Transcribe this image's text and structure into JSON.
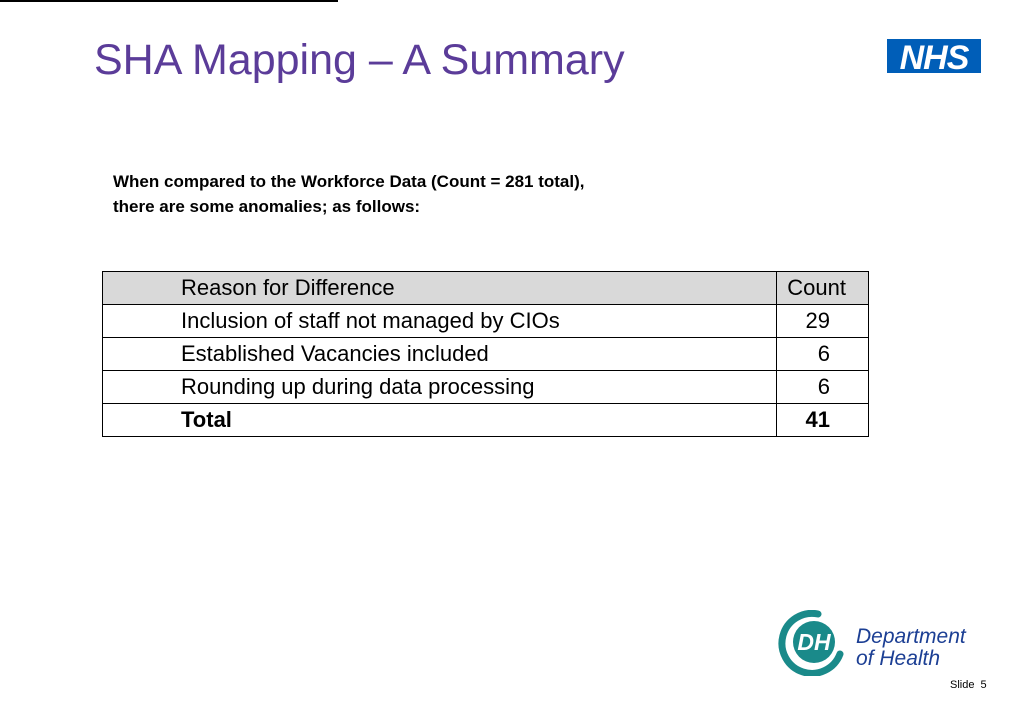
{
  "slide": {
    "title": "SHA Mapping – A Summary",
    "intro_line1": "When compared to the Workforce Data (Count = 281 total),",
    "intro_line2": "there are some anomalies; as follows:",
    "table": {
      "headers": [
        "Reason for Difference",
        "Count"
      ],
      "rows": [
        {
          "reason": "Inclusion of staff not managed by CIOs",
          "count": "29"
        },
        {
          "reason": "Established Vacancies included",
          "count": "6"
        },
        {
          "reason": "Rounding up during data processing",
          "count": "6"
        }
      ],
      "total": {
        "label": "Total",
        "count": "41"
      }
    },
    "slide_label": "Slide",
    "slide_number": "5"
  },
  "logos": {
    "nhs": "NHS",
    "dh_mark": "DH",
    "dh_line1": "Department",
    "dh_line2": "of Health"
  },
  "colors": {
    "title": "#5b3c99",
    "nhs_blue": "#005eb8",
    "dh_teal": "#1a8a8a",
    "dh_navy": "#1c3f94",
    "header_fill": "#d9d9d9"
  }
}
